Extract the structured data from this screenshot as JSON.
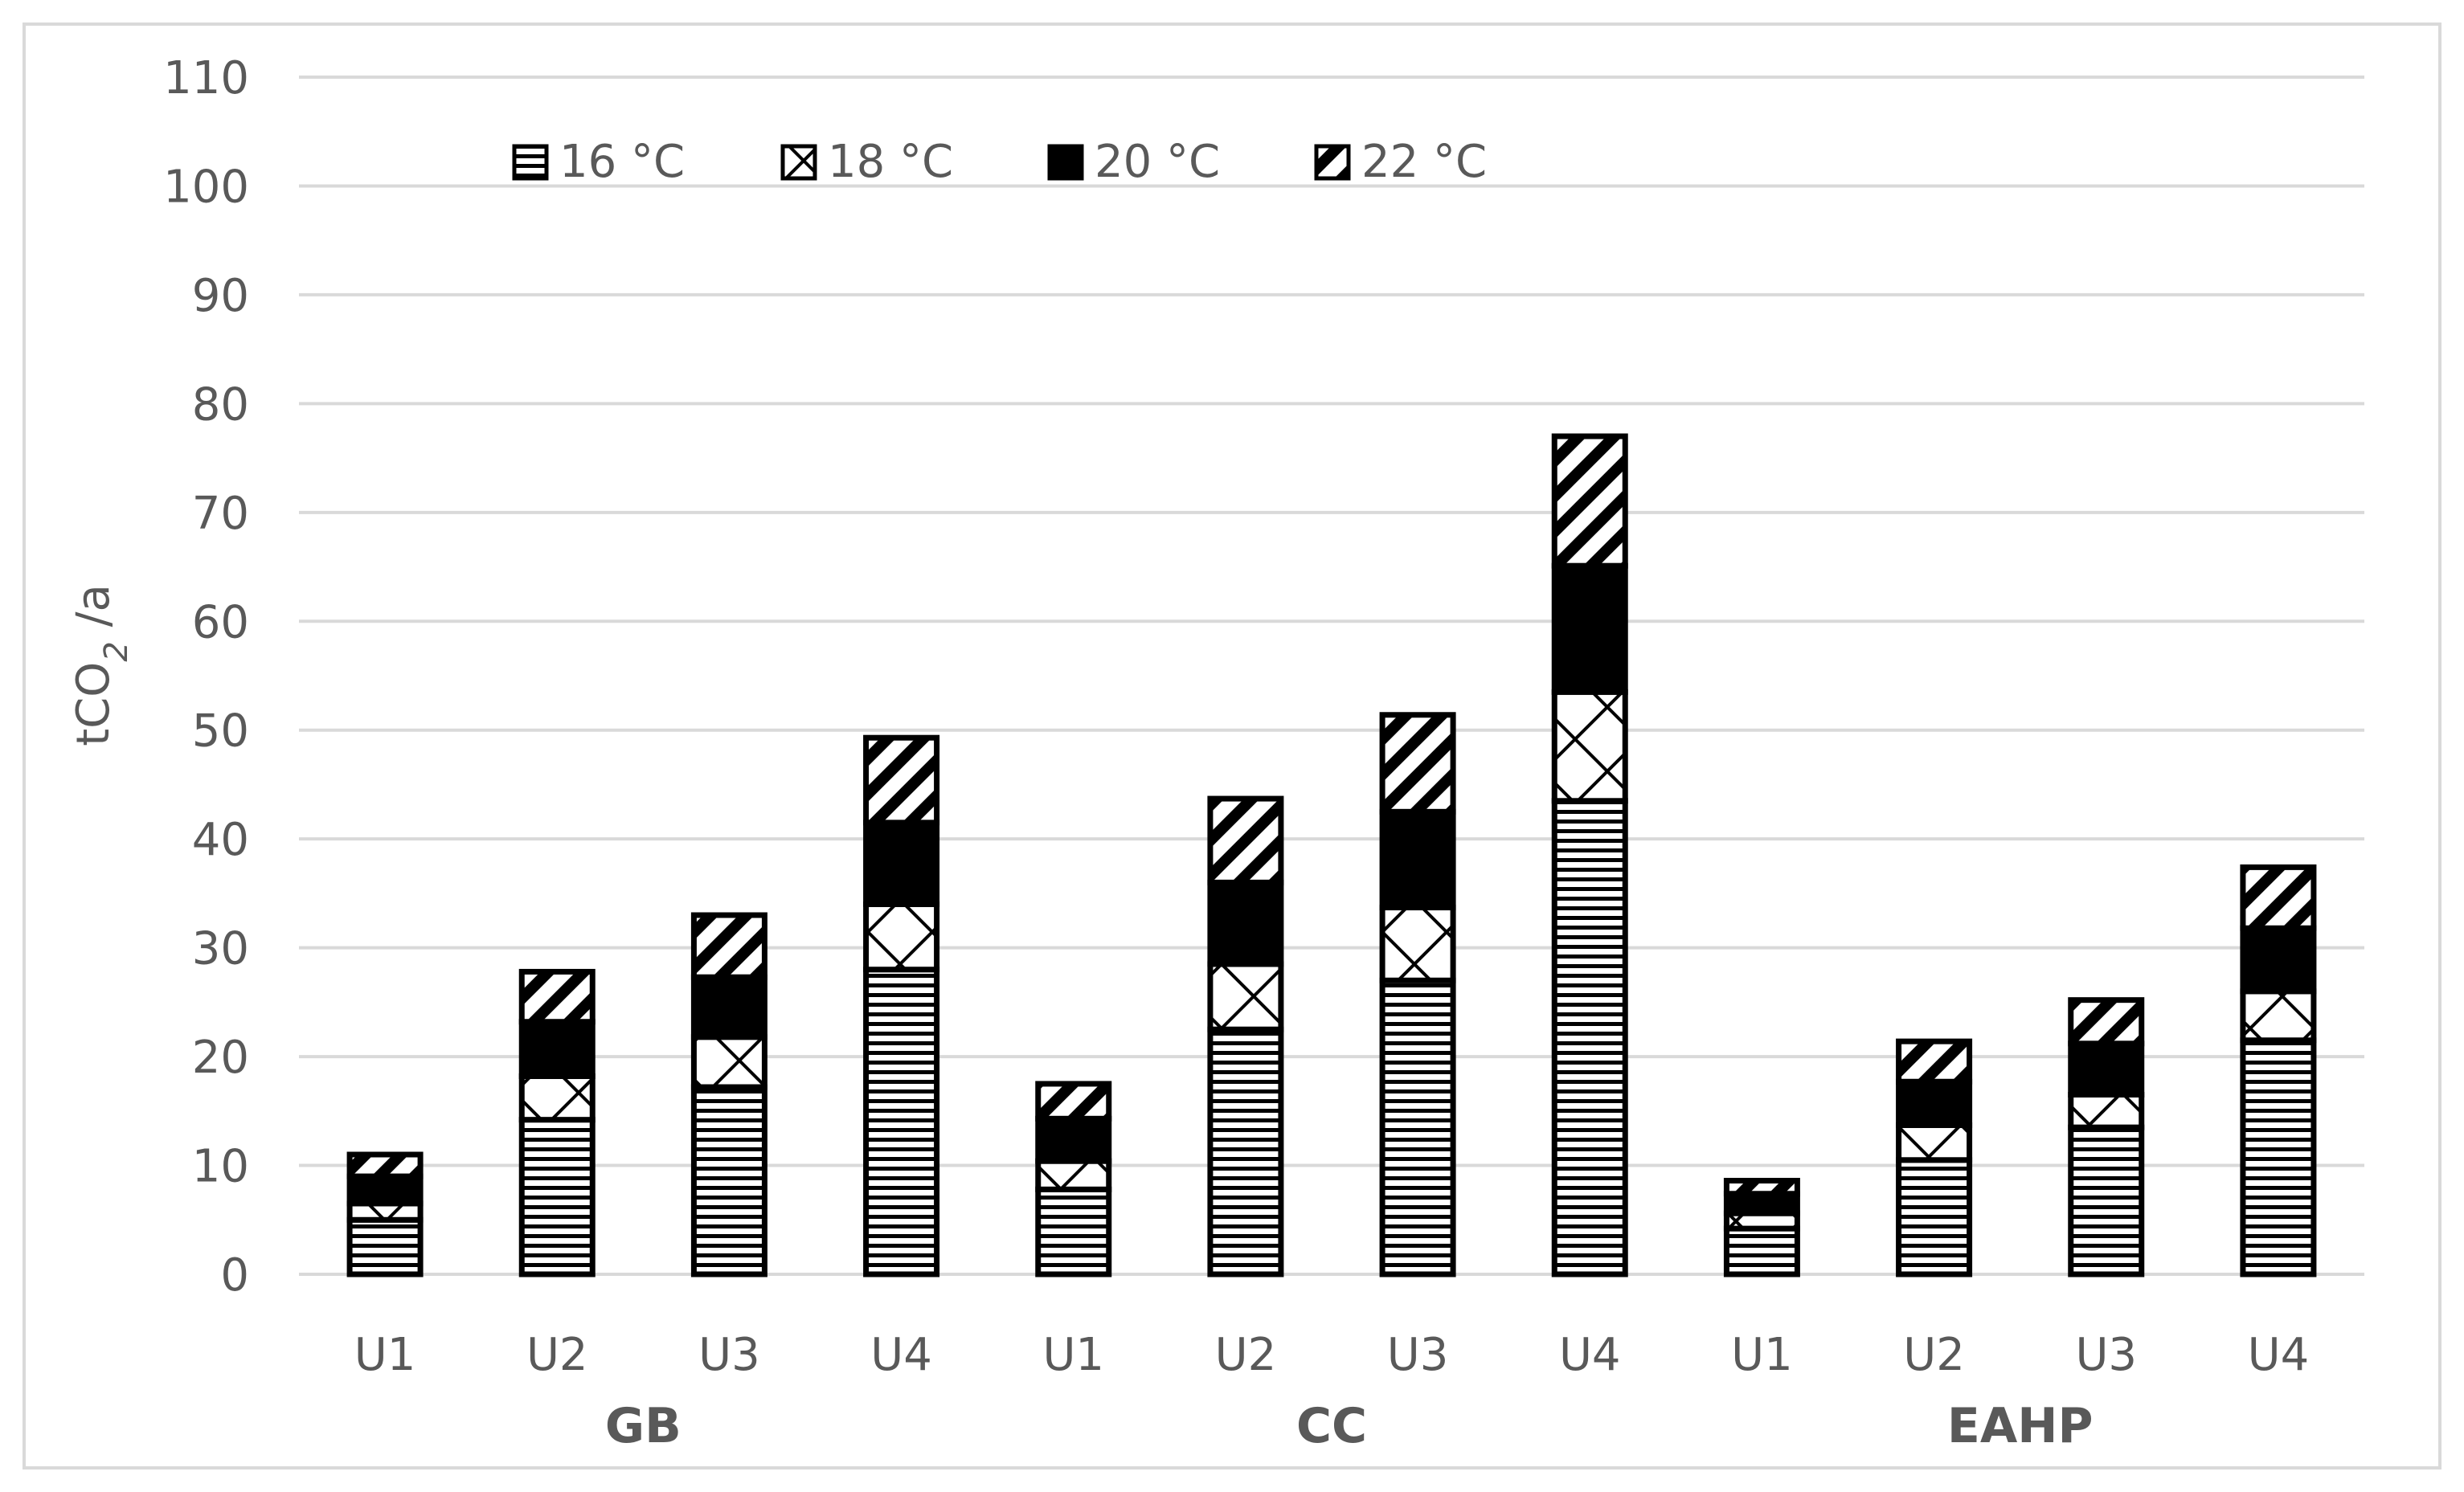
{
  "chart_data": {
    "type": "bar",
    "stacked": true,
    "ylabel": "tCO",
    "ylabel_subscript": "2",
    "ylabel_suffix": " /a",
    "ylim": [
      0,
      110
    ],
    "yticks": [
      0,
      10,
      20,
      30,
      40,
      50,
      60,
      70,
      80,
      90,
      100,
      110
    ],
    "grid": true,
    "legend_position": "top-left",
    "groups": [
      {
        "label": "GB",
        "categories": [
          "U1",
          "U2",
          "U3",
          "U4"
        ]
      },
      {
        "label": "CC",
        "categories": [
          "U1",
          "U2",
          "U3",
          "U4"
        ]
      },
      {
        "label": "EAHP",
        "categories": [
          "U1",
          "U2",
          "U3",
          "U4"
        ]
      }
    ],
    "series": [
      {
        "name": "16 °C",
        "pattern": "horizontal-lines",
        "values": [
          5.0,
          14.2,
          17.2,
          28.0,
          7.8,
          22.5,
          27.0,
          43.5,
          4.2,
          10.5,
          13.5,
          21.5
        ]
      },
      {
        "name": "18 °C",
        "pattern": "cross-hatch",
        "values": [
          1.5,
          4.0,
          4.6,
          6.0,
          2.6,
          6.0,
          6.7,
          10.0,
          1.4,
          3.2,
          3.0,
          4.5
        ]
      },
      {
        "name": "20 °C",
        "pattern": "solid-black",
        "values": [
          2.5,
          5.0,
          5.5,
          7.5,
          3.9,
          7.5,
          8.8,
          11.6,
          1.8,
          4.0,
          4.7,
          5.8
        ]
      },
      {
        "name": "22 °C",
        "pattern": "diagonal-stripes",
        "values": [
          2.0,
          4.6,
          5.7,
          7.8,
          3.2,
          7.7,
          8.9,
          11.9,
          1.2,
          3.7,
          4.0,
          5.6
        ]
      }
    ],
    "colors": {
      "bar_stroke": "#000000",
      "fill_black": "#000000",
      "grid": "#d9d9d9",
      "text": "#595959",
      "frame": "#d9d9d9"
    }
  }
}
